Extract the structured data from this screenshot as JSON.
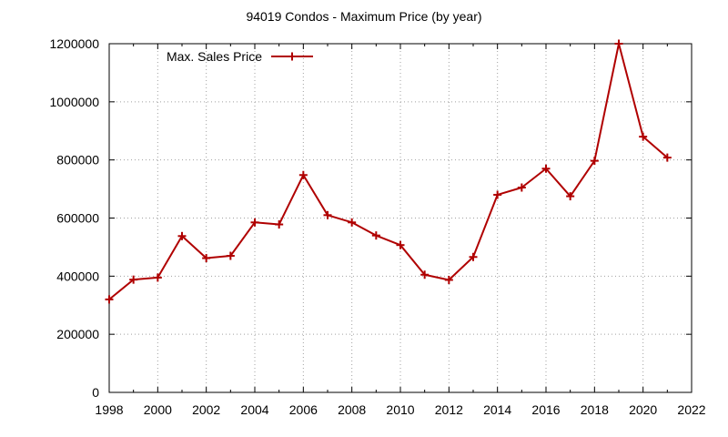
{
  "chart_data": {
    "type": "line",
    "title": "94019 Condos - Maximum Price (by year)",
    "xlabel": "",
    "ylabel": "",
    "xlim": [
      1998,
      2022
    ],
    "ylim": [
      0,
      1200000
    ],
    "xticks": [
      "1998",
      "2000",
      "2002",
      "2004",
      "2006",
      "2008",
      "2010",
      "2012",
      "2014",
      "2016",
      "2018",
      "2020",
      "2022"
    ],
    "yticks": [
      "0",
      "200000",
      "400000",
      "600000",
      "800000",
      "1000000",
      "1200000"
    ],
    "grid": true,
    "legend": "top-left",
    "series": [
      {
        "name": "Max. Sales Price",
        "color": "#b00000",
        "marker": "plus",
        "x": [
          1998,
          1999,
          2000,
          2001,
          2002,
          2003,
          2004,
          2005,
          2006,
          2007,
          2008,
          2009,
          2010,
          2011,
          2012,
          2013,
          2014,
          2015,
          2016,
          2017,
          2018,
          2019,
          2020,
          2021
        ],
        "y": [
          320000,
          388000,
          395000,
          538000,
          462000,
          470000,
          585000,
          578000,
          748000,
          610000,
          585000,
          540000,
          507000,
          405000,
          387000,
          466000,
          680000,
          705000,
          770000,
          675000,
          797000,
          1200000,
          880000,
          808000
        ]
      }
    ]
  }
}
